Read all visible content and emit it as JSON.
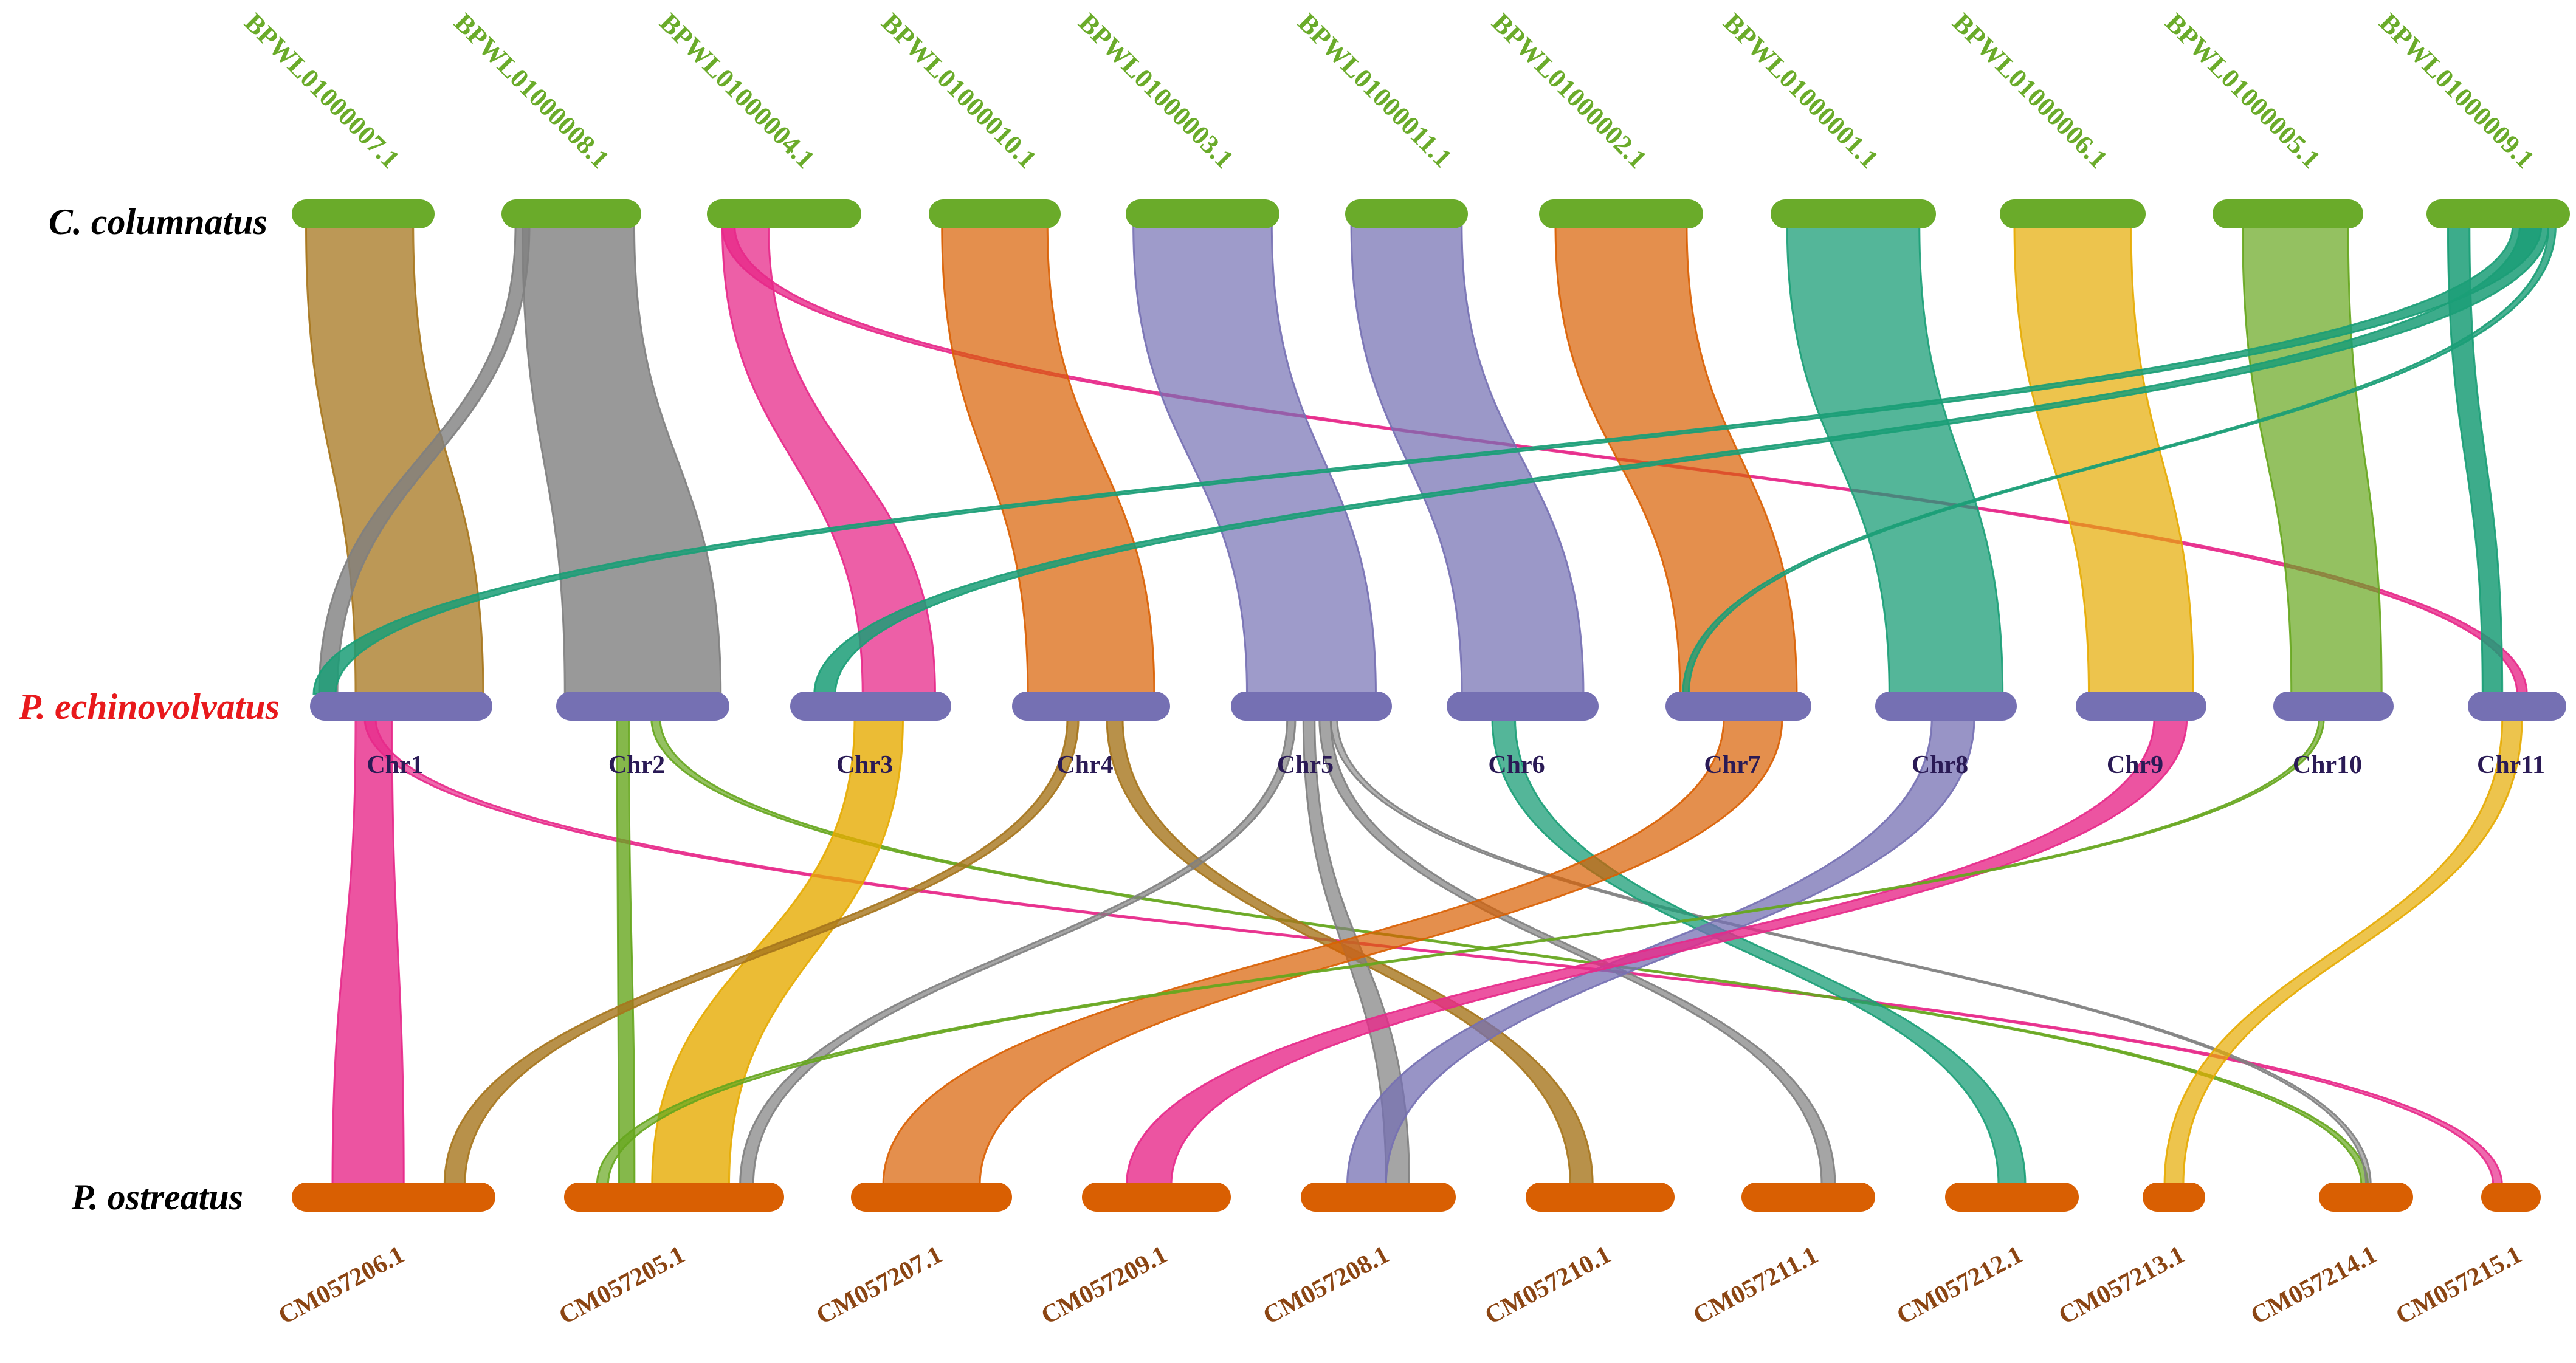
{
  "species": {
    "top": "C. columnatus",
    "middle": "P. echinovolvatus",
    "bottom": "P. ostreatus"
  },
  "colors": {
    "top_chrom": "#6aab2a",
    "middle_chrom": "#7570b3",
    "bottom_chrom": "#d95f02",
    "top_label": "#6aab2a",
    "middle_label": "#2a1a55",
    "bottom_label": "#8b4513",
    "species_top": "#000000",
    "species_middle": "#e8191c",
    "species_bottom": "#000000"
  },
  "top_chromosomes": [
    {
      "name": "BPWL01000007.1"
    },
    {
      "name": "BPWL01000008.1"
    },
    {
      "name": "BPWL01000004.1"
    },
    {
      "name": "BPWL01000010.1"
    },
    {
      "name": "BPWL01000003.1"
    },
    {
      "name": "BPWL01000011.1"
    },
    {
      "name": "BPWL01000002.1"
    },
    {
      "name": "BPWL01000001.1"
    },
    {
      "name": "BPWL01000006.1"
    },
    {
      "name": "BPWL01000005.1"
    },
    {
      "name": "BPWL01000009.1"
    }
  ],
  "middle_chromosomes": [
    {
      "name": "Chr1"
    },
    {
      "name": "Chr2"
    },
    {
      "name": "Chr3"
    },
    {
      "name": "Chr4"
    },
    {
      "name": "Chr5"
    },
    {
      "name": "Chr6"
    },
    {
      "name": "Chr7"
    },
    {
      "name": "Chr8"
    },
    {
      "name": "Chr9"
    },
    {
      "name": "Chr10"
    },
    {
      "name": "Chr11"
    }
  ],
  "bottom_chromosomes": [
    {
      "name": "CM057206.1"
    },
    {
      "name": "CM057205.1"
    },
    {
      "name": "CM057207.1"
    },
    {
      "name": "CM057209.1"
    },
    {
      "name": "CM057208.1"
    },
    {
      "name": "CM057210.1"
    },
    {
      "name": "CM057211.1"
    },
    {
      "name": "CM057212.1"
    },
    {
      "name": "CM057213.1"
    },
    {
      "name": "CM057214.1"
    },
    {
      "name": "CM057215.1"
    }
  ],
  "links_top_middle": [
    {
      "from": "BPWL01000007.1",
      "to": "Chr1",
      "color": "#a6761d"
    },
    {
      "from": "BPWL01000008.1",
      "to": "Chr2",
      "color": "#7f7f7f"
    },
    {
      "from": "BPWL01000008.1",
      "to": "Chr1",
      "color": "#7f7f7f"
    },
    {
      "from": "BPWL01000004.1",
      "to": "Chr3",
      "color": "#e7298a"
    },
    {
      "from": "BPWL01000004.1",
      "to": "Chr11",
      "color": "#e7298a"
    },
    {
      "from": "BPWL01000010.1",
      "to": "Chr4",
      "color": "#d95f02"
    },
    {
      "from": "BPWL01000003.1",
      "to": "Chr5",
      "color": "#7570b3"
    },
    {
      "from": "BPWL01000011.1",
      "to": "Chr6",
      "color": "#7570b3"
    },
    {
      "from": "BPWL01000002.1",
      "to": "Chr7",
      "color": "#d95f02"
    },
    {
      "from": "BPWL01000001.1",
      "to": "Chr8",
      "color": "#1b9e77"
    },
    {
      "from": "BPWL01000006.1",
      "to": "Chr9",
      "color": "#e6ab02"
    },
    {
      "from": "BPWL01000005.1",
      "to": "Chr10",
      "color": "#66a61e"
    },
    {
      "from": "BPWL01000009.1",
      "to": "Chr11",
      "color": "#1b9e77"
    },
    {
      "from": "BPWL01000009.1",
      "to": "Chr1",
      "color": "#1b9e77"
    },
    {
      "from": "BPWL01000009.1",
      "to": "Chr3",
      "color": "#1b9e77"
    },
    {
      "from": "BPWL01000009.1",
      "to": "Chr7",
      "color": "#1b9e77"
    }
  ],
  "links_middle_bottom": [
    {
      "from": "Chr1",
      "to": "CM057206.1",
      "color": "#e7298a"
    },
    {
      "from": "Chr1",
      "to": "CM057215.1",
      "color": "#e7298a"
    },
    {
      "from": "Chr2",
      "to": "CM057205.1",
      "color": "#66a61e"
    },
    {
      "from": "Chr2",
      "to": "CM057214.1",
      "color": "#66a61e"
    },
    {
      "from": "Chr3",
      "to": "CM057205.1",
      "color": "#e6ab02"
    },
    {
      "from": "Chr4",
      "to": "CM057206.1",
      "color": "#a6761d"
    },
    {
      "from": "Chr4",
      "to": "CM057210.1",
      "color": "#a6761d"
    },
    {
      "from": "Chr5",
      "to": "CM057205.1",
      "color": "#7f7f7f"
    },
    {
      "from": "Chr5",
      "to": "CM057208.1",
      "color": "#7f7f7f"
    },
    {
      "from": "Chr5",
      "to": "CM057211.1",
      "color": "#7f7f7f"
    },
    {
      "from": "Chr5",
      "to": "CM057214.1",
      "color": "#7f7f7f"
    },
    {
      "from": "Chr6",
      "to": "CM057212.1",
      "color": "#1b9e77"
    },
    {
      "from": "Chr7",
      "to": "CM057207.1",
      "color": "#d95f02"
    },
    {
      "from": "Chr8",
      "to": "CM057208.1",
      "color": "#7570b3"
    },
    {
      "from": "Chr9",
      "to": "CM057209.1",
      "color": "#e7298a"
    },
    {
      "from": "Chr10",
      "to": "CM057205.1",
      "color": "#66a61e"
    },
    {
      "from": "Chr11",
      "to": "CM057213.1",
      "color": "#e6ab02"
    }
  ]
}
